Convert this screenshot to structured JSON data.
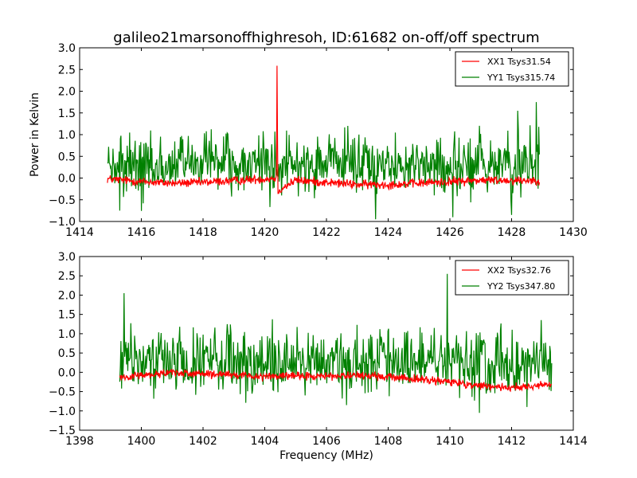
{
  "chart_data": [
    {
      "type": "line",
      "title": "galileo21marsonoffhighresoh, ID:61682 on-off/off spectrum",
      "xlabel": "",
      "ylabel": "Power in Kelvin",
      "xlim": [
        1414,
        1430
      ],
      "ylim": [
        -1.0,
        3.0
      ],
      "xticks": [
        "1414",
        "1416",
        "1418",
        "1420",
        "1422",
        "1424",
        "1426",
        "1428",
        "1430"
      ],
      "yticks": [
        "−1.0",
        "−0.5",
        "0.0",
        "0.5",
        "1.0",
        "1.5",
        "2.0",
        "2.5",
        "3.0"
      ],
      "grid": false,
      "legend_position": "top-right",
      "x_range": [
        1414.9,
        1428.9
      ],
      "series": [
        {
          "name": "XX1 Tsys31.54",
          "color": "#ff0000",
          "x": [
            1414.9,
            1416.0,
            1417.0,
            1418.0,
            1419.0,
            1420.0,
            1420.38,
            1420.4,
            1420.42,
            1421.0,
            1422.0,
            1423.0,
            1424.0,
            1425.0,
            1426.0,
            1427.0,
            1428.0,
            1428.9
          ],
          "values": [
            -0.02,
            -0.08,
            -0.12,
            -0.1,
            -0.06,
            -0.02,
            0.0,
            2.95,
            -0.3,
            -0.05,
            -0.1,
            -0.15,
            -0.15,
            -0.12,
            -0.08,
            -0.05,
            -0.05,
            -0.05
          ],
          "noise": 0.05
        },
        {
          "name": "YY1 Tsys315.74",
          "color": "#008000",
          "x": [
            1414.9,
            1416.0,
            1417.0,
            1418.0,
            1419.0,
            1420.0,
            1421.0,
            1422.0,
            1423.0,
            1424.0,
            1425.0,
            1426.0,
            1427.0,
            1428.0,
            1428.9
          ],
          "values": [
            0.25,
            0.2,
            0.3,
            0.35,
            0.3,
            0.3,
            0.3,
            0.35,
            0.3,
            0.25,
            0.3,
            0.3,
            0.35,
            0.3,
            0.3
          ],
          "noise": 0.35,
          "spikes": [
            {
              "x": 1428.2,
              "y": 1.55
            },
            {
              "x": 1428.8,
              "y": 1.75
            },
            {
              "x": 1423.6,
              "y": -0.95
            },
            {
              "x": 1426.1,
              "y": -0.9
            },
            {
              "x": 1428.0,
              "y": -0.85
            },
            {
              "x": 1415.3,
              "y": -0.75
            }
          ]
        }
      ]
    },
    {
      "type": "line",
      "title": "",
      "xlabel": "Frequency (MHz)",
      "ylabel": "",
      "xlim": [
        1398,
        1414
      ],
      "ylim": [
        -1.5,
        3.0
      ],
      "xticks": [
        "1398",
        "1400",
        "1402",
        "1404",
        "1406",
        "1408",
        "1410",
        "1412",
        "1414"
      ],
      "yticks": [
        "−1.5",
        "−1.0",
        "−0.5",
        "0.0",
        "0.5",
        "1.0",
        "1.5",
        "2.0",
        "2.5",
        "3.0"
      ],
      "grid": false,
      "legend_position": "top-right",
      "x_range": [
        1399.3,
        1413.3
      ],
      "series": [
        {
          "name": "XX2 Tsys32.76",
          "color": "#ff0000",
          "x": [
            1399.3,
            1400.0,
            1401.0,
            1402.0,
            1403.0,
            1404.0,
            1405.0,
            1406.0,
            1407.0,
            1408.0,
            1409.0,
            1410.0,
            1411.0,
            1412.0,
            1413.3
          ],
          "values": [
            -0.12,
            -0.08,
            0.0,
            -0.05,
            -0.08,
            -0.1,
            -0.1,
            -0.1,
            -0.08,
            -0.12,
            -0.18,
            -0.25,
            -0.35,
            -0.4,
            -0.3
          ],
          "noise": 0.05
        },
        {
          "name": "YY2 Tsys347.80",
          "color": "#008000",
          "x": [
            1399.3,
            1400.0,
            1401.0,
            1402.0,
            1403.0,
            1404.0,
            1405.0,
            1406.0,
            1407.0,
            1408.0,
            1409.0,
            1410.0,
            1411.0,
            1412.0,
            1413.3
          ],
          "values": [
            0.25,
            0.3,
            0.3,
            0.3,
            0.25,
            0.25,
            0.25,
            0.25,
            0.3,
            0.3,
            0.3,
            0.25,
            0.2,
            0.2,
            0.25
          ],
          "noise": 0.4,
          "spikes": [
            {
              "x": 1399.45,
              "y": 2.05
            },
            {
              "x": 1409.92,
              "y": 2.55
            },
            {
              "x": 1410.95,
              "y": -1.05
            },
            {
              "x": 1406.65,
              "y": -0.85
            },
            {
              "x": 1412.5,
              "y": -0.9
            }
          ]
        }
      ]
    }
  ]
}
